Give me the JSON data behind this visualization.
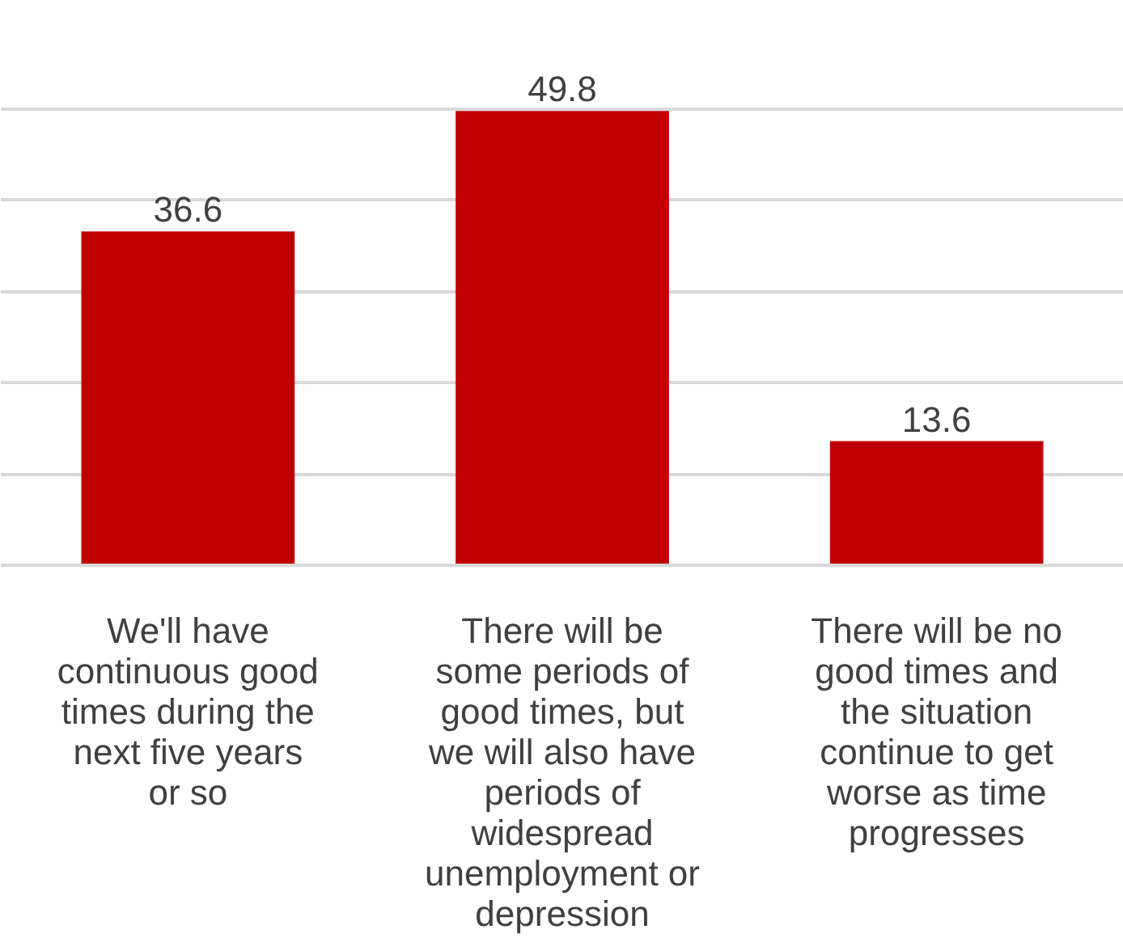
{
  "chart_data": {
    "type": "bar",
    "categories": [
      "We'll have continuous good times during the next five years or so",
      "There will be some periods of good times, but we will also have periods of widespread unemployment or depression",
      "There will be no good times and the situation continue to get worse as time progresses"
    ],
    "values": [
      36.6,
      49.8,
      13.6
    ],
    "color": "#c00000",
    "tick_labels": "x",
    "grid": "y",
    "data_labels": true
  }
}
